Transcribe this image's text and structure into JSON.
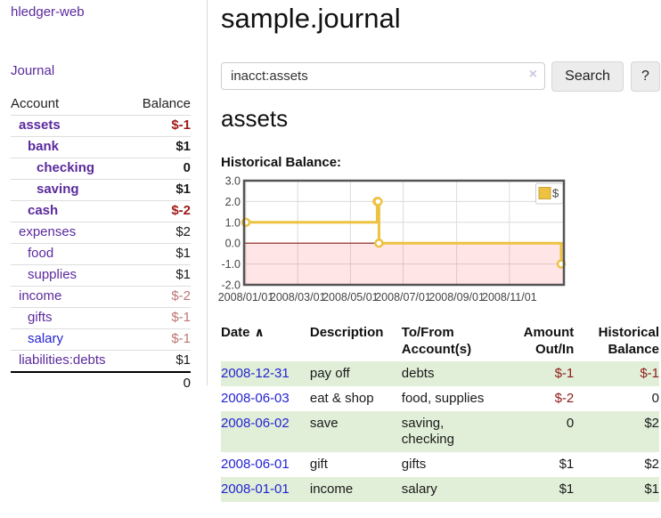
{
  "app": {
    "brand": "hledger-web",
    "nav_journal": "Journal"
  },
  "colors": {
    "link_purple": "#5b2a9d",
    "link_blue": "#2323d3",
    "negative_red": "#9e1a1a",
    "negative_soft_red": "#bd7575",
    "row_stripe_green": "#e1efd8",
    "chart_line_gold": "#edc240"
  },
  "sidebar": {
    "columns": {
      "account": "Account",
      "balance": "Balance"
    },
    "rows": [
      {
        "name": "assets",
        "indent": 1,
        "balance": "$-1",
        "bold": true,
        "neg": "strong"
      },
      {
        "name": "bank",
        "indent": 2,
        "balance": "$1",
        "bold": true,
        "neg": "none"
      },
      {
        "name": "checking",
        "indent": 3,
        "balance": "0",
        "bold": true,
        "neg": "none"
      },
      {
        "name": "saving",
        "indent": 3,
        "balance": "$1",
        "bold": true,
        "neg": "none"
      },
      {
        "name": "cash",
        "indent": 2,
        "balance": "$-2",
        "bold": true,
        "neg": "strong"
      },
      {
        "name": "expenses",
        "indent": 1,
        "balance": "$2",
        "bold": false,
        "neg": "none"
      },
      {
        "name": "food",
        "indent": 2,
        "balance": "$1",
        "bold": false,
        "neg": "none"
      },
      {
        "name": "supplies",
        "indent": 2,
        "balance": "$1",
        "bold": false,
        "neg": "none"
      },
      {
        "name": "income",
        "indent": 1,
        "balance": "$-2",
        "bold": false,
        "neg": "soft"
      },
      {
        "name": "gifts",
        "indent": 2,
        "balance": "$-1",
        "bold": false,
        "neg": "soft"
      },
      {
        "name": "salary",
        "indent": 2,
        "balance": "$-1",
        "bold": false,
        "neg": "soft",
        "blue": true
      },
      {
        "name": "liabilities:debts",
        "indent": 1,
        "balance": "$1",
        "bold": false,
        "neg": "none"
      }
    ],
    "total": "0"
  },
  "header": {
    "title": "sample.journal"
  },
  "search": {
    "value": "inacct:assets",
    "clear_icon": "×",
    "button_label": "Search",
    "help_label": "?"
  },
  "account_page": {
    "title": "assets",
    "chart_caption": "Historical Balance:"
  },
  "chart_data": {
    "type": "line",
    "title": "Historical Balance",
    "step": true,
    "series": [
      {
        "name": "$",
        "color": "#edc240",
        "points": [
          [
            "2008-01-01",
            1.0
          ],
          [
            "2008-06-01",
            2.0
          ],
          [
            "2008-06-02",
            2.0
          ],
          [
            "2008-06-03",
            0.0
          ],
          [
            "2008-12-31",
            -1.0
          ]
        ]
      }
    ],
    "x_range": [
      "2008-01-01",
      "2009-01-01"
    ],
    "x_ticks": [
      {
        "label": "2008/01/01",
        "date": "2008-01-01"
      },
      {
        "label": "2008/03/01",
        "date": "2008-03-01"
      },
      {
        "label": "2008/05/01",
        "date": "2008-05-01"
      },
      {
        "label": "2008/07/01",
        "date": "2008-07-01"
      },
      {
        "label": "2008/09/01",
        "date": "2008-09-01"
      },
      {
        "label": "2008/11/01",
        "date": "2008-11-01"
      }
    ],
    "ylim": [
      -2.0,
      3.0
    ],
    "y_ticks": [
      {
        "label": "3.0",
        "value": 3
      },
      {
        "label": "2.0",
        "value": 2
      },
      {
        "label": "1.0",
        "value": 1
      },
      {
        "label": "0.0",
        "value": 0
      },
      {
        "label": "-1.0",
        "value": -1
      },
      {
        "label": "-2.0",
        "value": -2
      }
    ],
    "grid": true,
    "legend_position": "top-right",
    "legend_label": "$",
    "line_color": "#edc240",
    "negative_fill": "rgba(255,0,0,0.10)",
    "zero_line_color": "#8b1f1f",
    "border_color": "#545454",
    "grid_color": "#dcdcdc"
  },
  "register": {
    "columns": [
      "Date",
      "Description",
      "To/From Account(s)",
      "Amount Out/In",
      "Historical Balance"
    ],
    "sort_icon": "∧",
    "rows": [
      {
        "date": "2008-12-31",
        "description": "pay off",
        "accounts": "debts",
        "amount": "$-1",
        "amount_neg": true,
        "balance": "$-1",
        "balance_neg": true
      },
      {
        "date": "2008-06-03",
        "description": "eat & shop",
        "accounts": "food, supplies",
        "amount": "$-2",
        "amount_neg": true,
        "balance": "0",
        "balance_neg": false
      },
      {
        "date": "2008-06-02",
        "description": "save",
        "accounts": "saving, checking",
        "amount": "0",
        "amount_neg": false,
        "balance": "$2",
        "balance_neg": false
      },
      {
        "date": "2008-06-01",
        "description": "gift",
        "accounts": "gifts",
        "amount": "$1",
        "amount_neg": false,
        "balance": "$2",
        "balance_neg": false
      },
      {
        "date": "2008-01-01",
        "description": "income",
        "accounts": "salary",
        "amount": "$1",
        "amount_neg": false,
        "balance": "$1",
        "balance_neg": false
      }
    ]
  }
}
